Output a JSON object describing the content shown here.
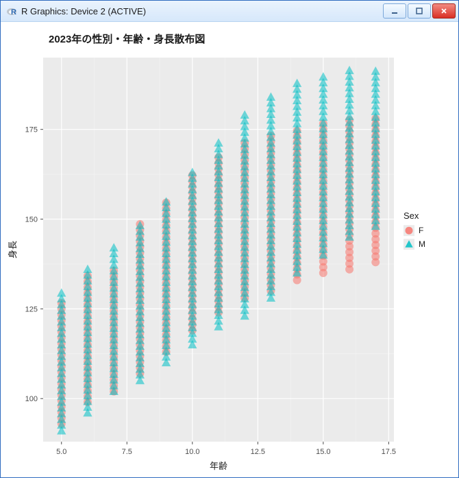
{
  "window": {
    "title": "R Graphics: Device 2 (ACTIVE)"
  },
  "chart": {
    "type": "scatter",
    "title": "2023年の性別・年齢・身長散布図",
    "xlabel": "年齢",
    "ylabel": "身長",
    "legend_title": "Sex",
    "background_color": "#ffffff",
    "panel_bg": "#ebebeb",
    "grid_major_color": "#ffffff",
    "grid_minor_color": "#f4f4f4",
    "title_fontsize": 15,
    "label_fontsize": 13,
    "tick_fontsize": 11,
    "xlim": [
      4.3,
      17.7
    ],
    "ylim": [
      88,
      195
    ],
    "xticks": [
      5.0,
      7.5,
      10.0,
      12.5,
      15.0,
      17.5
    ],
    "yticks": [
      100,
      125,
      150,
      175
    ],
    "xtick_labels": [
      "5.0",
      "7.5",
      "10.0",
      "12.5",
      "15.0",
      "17.5"
    ],
    "ytick_labels": [
      "100",
      "125",
      "150",
      "175"
    ],
    "series": [
      {
        "name": "F",
        "label": "F",
        "color": "#f8766d",
        "fill_opacity": 0.55,
        "marker": "circle",
        "marker_size": 6,
        "columns": [
          {
            "x": 5,
            "ymin": 93,
            "ymax": 128
          },
          {
            "x": 6,
            "ymin": 99,
            "ymax": 135
          },
          {
            "x": 7,
            "ymin": 102,
            "ymax": 137
          },
          {
            "x": 8,
            "ymin": 107,
            "ymax": 149
          },
          {
            "x": 9,
            "ymin": 113,
            "ymax": 155
          },
          {
            "x": 10,
            "ymin": 119,
            "ymax": 163
          },
          {
            "x": 11,
            "ymin": 124,
            "ymax": 168
          },
          {
            "x": 12,
            "ymin": 128,
            "ymax": 172
          },
          {
            "x": 13,
            "ymin": 130,
            "ymax": 174
          },
          {
            "x": 14,
            "ymin": 133,
            "ymax": 176
          },
          {
            "x": 15,
            "ymin": 135,
            "ymax": 177
          },
          {
            "x": 16,
            "ymin": 136,
            "ymax": 178
          },
          {
            "x": 17,
            "ymin": 138,
            "ymax": 178
          }
        ]
      },
      {
        "name": "M",
        "label": "M",
        "color": "#00bfc4",
        "fill_opacity": 0.55,
        "marker": "triangle",
        "marker_size": 7,
        "columns": [
          {
            "x": 5,
            "ymin": 91,
            "ymax": 130
          },
          {
            "x": 6,
            "ymin": 96,
            "ymax": 136
          },
          {
            "x": 7,
            "ymin": 102,
            "ymax": 143
          },
          {
            "x": 8,
            "ymin": 105,
            "ymax": 149
          },
          {
            "x": 9,
            "ymin": 110,
            "ymax": 156
          },
          {
            "x": 10,
            "ymin": 115,
            "ymax": 164
          },
          {
            "x": 11,
            "ymin": 120,
            "ymax": 172
          },
          {
            "x": 12,
            "ymin": 123,
            "ymax": 179
          },
          {
            "x": 13,
            "ymin": 128,
            "ymax": 185
          },
          {
            "x": 14,
            "ymin": 135,
            "ymax": 189
          },
          {
            "x": 15,
            "ymin": 140,
            "ymax": 191
          },
          {
            "x": 16,
            "ymin": 145,
            "ymax": 192
          },
          {
            "x": 17,
            "ymin": 148,
            "ymax": 192
          }
        ]
      }
    ]
  }
}
